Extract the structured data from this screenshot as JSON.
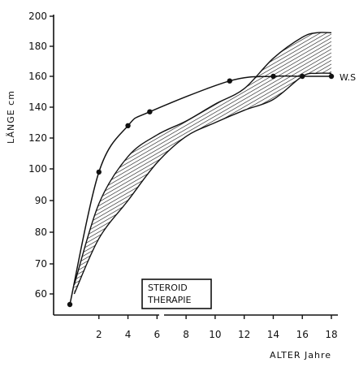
{
  "chart_data": {
    "type": "line",
    "title": "",
    "xlabel": "ALTER  Jahre",
    "ylabel": "LÄNGE  cm",
    "x_ticks": [
      2,
      4,
      6,
      8,
      10,
      12,
      14,
      16,
      18
    ],
    "y_ticks": [
      60,
      70,
      80,
      90,
      100,
      120,
      140,
      160,
      180,
      200
    ],
    "xlim": [
      0,
      18
    ],
    "y_scale": "piecewise: 10 units per major tick below 100, 20 units per major tick above 100",
    "grid": false,
    "series": [
      {
        "name": "W.S",
        "x": [
          0,
          2,
          4,
          5.5,
          11,
          14,
          16,
          18
        ],
        "values": [
          55,
          99,
          128,
          137,
          157,
          160,
          160,
          160
        ]
      }
    ],
    "reference_band": {
      "x": [
        0.3,
        2,
        4,
        6,
        8,
        10,
        12,
        14,
        16,
        17,
        18
      ],
      "upper": [
        63,
        89,
        108,
        122,
        131,
        142,
        152,
        172,
        186,
        189,
        189
      ],
      "lower": [
        60,
        78,
        90,
        104,
        121,
        130,
        138,
        145,
        160,
        162,
        162
      ]
    },
    "annotation": {
      "lines": [
        "STEROID",
        "THERAPIE"
      ]
    },
    "series_label": "W.S"
  }
}
